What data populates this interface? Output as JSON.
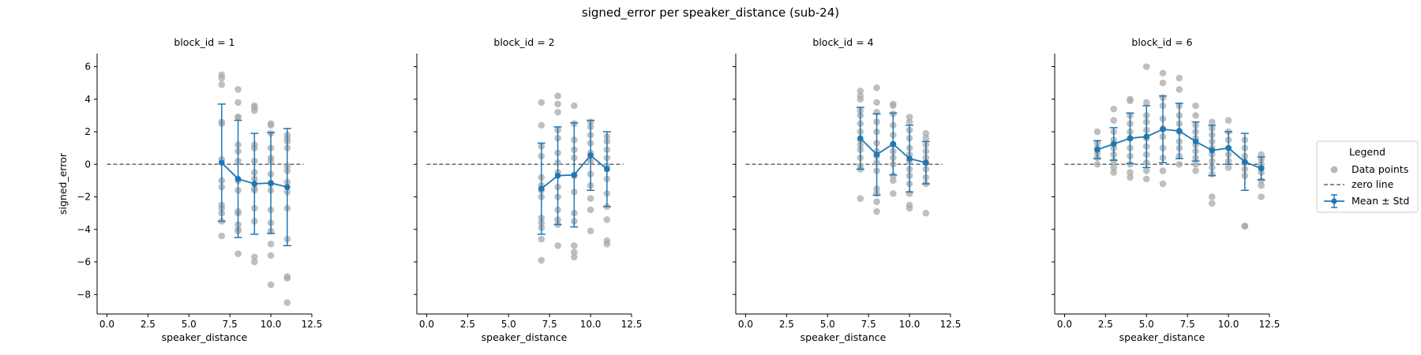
{
  "chart_data": {
    "type": "scatter",
    "title": "signed_error per speaker_distance (sub-24)",
    "xlabel": "speaker_distance",
    "ylabel": "signed_error",
    "xlim": [
      -0.6,
      12.5
    ],
    "ylim": [
      -9.2,
      6.8
    ],
    "xticks": [
      0.0,
      2.5,
      5.0,
      7.5,
      10.0,
      12.5
    ],
    "xtick_labels": [
      "0.0",
      "2.5",
      "5.0",
      "7.5",
      "10.0",
      "12.5"
    ],
    "yticks": [
      -8,
      -6,
      -4,
      -2,
      0,
      2,
      4,
      6
    ],
    "ytick_labels": [
      "−8",
      "−6",
      "−4",
      "−2",
      "0",
      "2",
      "4",
      "6"
    ],
    "zero_line": {
      "x_range": [
        0,
        12
      ],
      "y": 0
    },
    "legend": {
      "title": "Legend",
      "position": "right",
      "entries": [
        "Data points",
        "zero line",
        "Mean ± Std"
      ]
    },
    "colors": {
      "points": "#a9a9a9",
      "mean": "#1f77b4",
      "zero_line": "#666666"
    },
    "panels": [
      {
        "title": "block_id = 1",
        "points": [
          {
            "x": 7,
            "y": [
              5.5,
              5.3,
              4.9,
              2.6,
              2.5,
              0.3,
              -1.0,
              -1.4,
              -2.5,
              -2.7,
              -3.0,
              -3.5,
              -4.4
            ]
          },
          {
            "x": 8,
            "y": [
              4.6,
              3.8,
              2.9,
              2.9,
              1.2,
              0.8,
              0.2,
              -1.0,
              -1.6,
              -2.9,
              -3.0,
              -3.7,
              -4.0,
              -4.1,
              -5.5
            ]
          },
          {
            "x": 9,
            "y": [
              3.6,
              3.5,
              3.3,
              1.2,
              1.0,
              0.2,
              -0.5,
              -0.9,
              -1.5,
              -1.6,
              -2.7,
              -3.5,
              -5.7,
              -6.0
            ]
          },
          {
            "x": 10,
            "y": [
              2.5,
              2.4,
              1.9,
              1.0,
              0.4,
              0.2,
              -0.6,
              -1.2,
              -1.6,
              -2.8,
              -3.6,
              -4.1,
              -4.9,
              -5.6,
              -7.4
            ]
          },
          {
            "x": 11,
            "y": [
              1.8,
              1.6,
              1.4,
              1.0,
              -0.1,
              -0.4,
              -1.1,
              -1.7,
              -2.7,
              -4.6,
              -6.9,
              -7.0,
              -8.5
            ]
          }
        ],
        "mean": [
          {
            "x": 7,
            "mean": 0.1,
            "std": 3.6
          },
          {
            "x": 8,
            "mean": -0.9,
            "std": 3.6
          },
          {
            "x": 9,
            "mean": -1.2,
            "std": 3.1
          },
          {
            "x": 10,
            "mean": -1.15,
            "std": 3.1
          },
          {
            "x": 11,
            "mean": -1.4,
            "std": 3.6
          }
        ]
      },
      {
        "title": "block_id = 2",
        "points": [
          {
            "x": 7,
            "y": [
              3.8,
              2.4,
              1.1,
              0.5,
              -0.8,
              -1.3,
              -1.6,
              -2.0,
              -3.3,
              -3.6,
              -3.9,
              -4.6,
              -5.9
            ]
          },
          {
            "x": 8,
            "y": [
              4.2,
              3.7,
              3.2,
              2.1,
              1.6,
              0.7,
              0.1,
              -0.5,
              -1.4,
              -2.0,
              -2.8,
              -3.4,
              -3.7,
              -5.0
            ]
          },
          {
            "x": 9,
            "y": [
              3.6,
              2.5,
              1.5,
              0.9,
              0.4,
              -0.7,
              -1.7,
              -3.0,
              -3.5,
              -5.0,
              -5.4,
              -5.7
            ]
          },
          {
            "x": 10,
            "y": [
              2.6,
              2.3,
              1.8,
              1.3,
              0.7,
              0.2,
              -0.6,
              -1.3,
              -2.1,
              -2.8,
              -4.1
            ]
          },
          {
            "x": 11,
            "y": [
              1.7,
              1.4,
              0.9,
              0.4,
              -0.1,
              -0.9,
              -1.8,
              -2.6,
              -3.4,
              -4.7,
              -4.9
            ]
          }
        ],
        "mean": [
          {
            "x": 7,
            "mean": -1.5,
            "std": 2.8
          },
          {
            "x": 8,
            "mean": -0.7,
            "std": 3.0
          },
          {
            "x": 9,
            "mean": -0.65,
            "std": 3.2
          },
          {
            "x": 10,
            "mean": 0.55,
            "std": 2.15
          },
          {
            "x": 11,
            "mean": -0.3,
            "std": 2.3
          }
        ]
      },
      {
        "title": "block_id = 4",
        "points": [
          {
            "x": 7,
            "y": [
              4.5,
              4.2,
              4.0,
              3.3,
              3.0,
              2.5,
              2.0,
              1.5,
              1.2,
              0.9,
              0.4,
              -0.1,
              -0.3,
              -2.1
            ]
          },
          {
            "x": 8,
            "y": [
              4.7,
              3.8,
              3.2,
              2.6,
              2.0,
              1.3,
              0.8,
              0.5,
              0.1,
              -0.4,
              -1.5,
              -1.8,
              -2.3,
              -2.9
            ]
          },
          {
            "x": 9,
            "y": [
              3.7,
              3.6,
              3.1,
              2.4,
              1.8,
              1.2,
              0.8,
              0.4,
              0.0,
              -0.7,
              -1.0,
              -1.8
            ]
          },
          {
            "x": 10,
            "y": [
              2.9,
              2.6,
              2.1,
              1.6,
              1.0,
              0.6,
              0.2,
              -0.3,
              -0.7,
              -1.2,
              -1.8,
              -2.5,
              -2.7
            ]
          },
          {
            "x": 11,
            "y": [
              1.9,
              1.6,
              1.2,
              0.8,
              0.4,
              0.1,
              -0.3,
              -0.8,
              -1.2,
              -3.0
            ]
          }
        ],
        "mean": [
          {
            "x": 7,
            "mean": 1.6,
            "std": 1.9
          },
          {
            "x": 8,
            "mean": 0.6,
            "std": 2.5
          },
          {
            "x": 9,
            "mean": 1.25,
            "std": 1.9
          },
          {
            "x": 10,
            "mean": 0.35,
            "std": 2.05
          },
          {
            "x": 11,
            "mean": 0.1,
            "std": 1.3
          }
        ]
      },
      {
        "title": "block_id = 6",
        "points": [
          {
            "x": 2,
            "y": [
              2.0,
              1.3,
              1.0,
              0.7,
              0.4,
              0.0
            ]
          },
          {
            "x": 3,
            "y": [
              3.4,
              2.7,
              2.0,
              1.5,
              1.0,
              0.6,
              0.2,
              -0.2,
              -0.5
            ]
          },
          {
            "x": 4,
            "y": [
              4.0,
              3.9,
              3.0,
              2.5,
              2.0,
              1.6,
              1.0,
              0.5,
              0.0,
              -0.5,
              -0.8
            ]
          },
          {
            "x": 5,
            "y": [
              6.0,
              3.8,
              3.0,
              2.6,
              2.1,
              1.6,
              1.1,
              0.6,
              0.1,
              -0.4,
              -0.9
            ]
          },
          {
            "x": 6,
            "y": [
              5.6,
              5.0,
              4.1,
              3.6,
              2.8,
              2.2,
              1.7,
              1.0,
              0.4,
              -0.4,
              -1.2
            ]
          },
          {
            "x": 7,
            "y": [
              5.3,
              4.6,
              3.6,
              3.0,
              2.5,
              2.0,
              1.4,
              1.0,
              0.5,
              0.0
            ]
          },
          {
            "x": 8,
            "y": [
              3.6,
              3.0,
              2.4,
              2.0,
              1.6,
              1.2,
              0.8,
              0.4,
              0.0,
              -0.4
            ]
          },
          {
            "x": 9,
            "y": [
              2.6,
              2.2,
              1.8,
              1.4,
              1.0,
              0.6,
              0.2,
              -0.2,
              -0.6,
              -2.0,
              -2.4
            ]
          },
          {
            "x": 10,
            "y": [
              2.7,
              2.0,
              1.5,
              1.0,
              0.6,
              0.2,
              -0.2
            ]
          },
          {
            "x": 11,
            "y": [
              1.5,
              1.0,
              0.5,
              0.1,
              -0.3,
              -0.7,
              -3.8,
              -3.8
            ]
          },
          {
            "x": 12,
            "y": [
              0.6,
              0.3,
              0.0,
              -0.2,
              -0.5,
              -1.0,
              -1.3,
              -2.0
            ]
          }
        ],
        "mean": [
          {
            "x": 2,
            "mean": 0.9,
            "std": 0.55
          },
          {
            "x": 3,
            "mean": 1.25,
            "std": 1.0
          },
          {
            "x": 4,
            "mean": 1.6,
            "std": 1.55
          },
          {
            "x": 5,
            "mean": 1.7,
            "std": 1.9
          },
          {
            "x": 6,
            "mean": 2.15,
            "std": 2.05
          },
          {
            "x": 7,
            "mean": 2.05,
            "std": 1.7
          },
          {
            "x": 8,
            "mean": 1.4,
            "std": 1.2
          },
          {
            "x": 9,
            "mean": 0.85,
            "std": 1.55
          },
          {
            "x": 10,
            "mean": 1.0,
            "std": 1.0
          },
          {
            "x": 11,
            "mean": 0.15,
            "std": 1.75
          },
          {
            "x": 12,
            "mean": -0.25,
            "std": 0.7
          }
        ]
      }
    ]
  }
}
